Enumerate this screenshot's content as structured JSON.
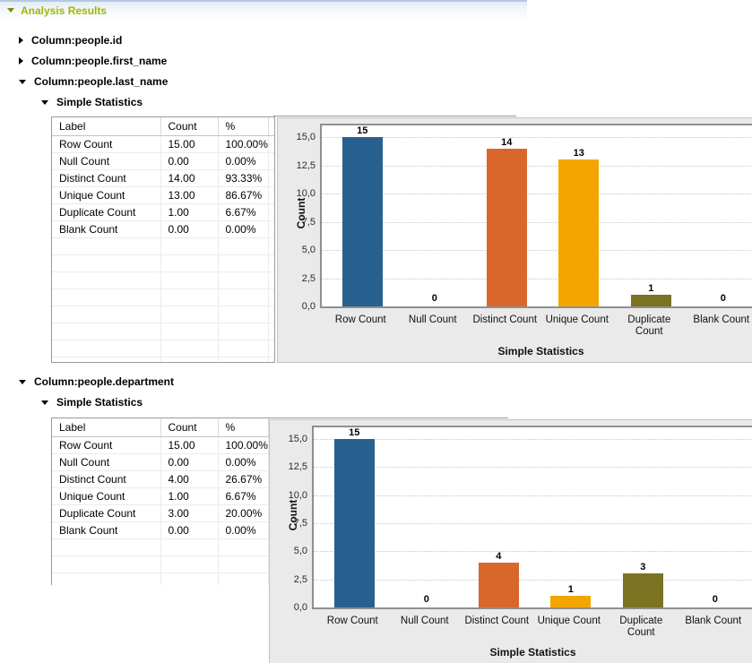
{
  "header": {
    "title": "Analysis Results"
  },
  "tree": {
    "items": [
      {
        "label": "Column:people.id",
        "expanded": false,
        "indent": 0
      },
      {
        "label": "Column:people.first_name",
        "expanded": false,
        "indent": 0
      },
      {
        "label": "Column:people.last_name",
        "expanded": true,
        "indent": 0
      },
      {
        "label": "Simple Statistics",
        "expanded": true,
        "indent": 1
      },
      {
        "label": "Column:people.department",
        "expanded": true,
        "indent": 0
      },
      {
        "label": "Simple Statistics",
        "expanded": true,
        "indent": 1
      }
    ]
  },
  "sections": [
    {
      "table": {
        "headers": [
          "Label",
          "Count",
          "%"
        ],
        "rows": [
          [
            "Row Count",
            "15.00",
            "100.00%"
          ],
          [
            "Null Count",
            "0.00",
            "0.00%"
          ],
          [
            "Distinct Count",
            "14.00",
            "93.33%"
          ],
          [
            "Unique Count",
            "13.00",
            "86.67%"
          ],
          [
            "Duplicate Count",
            "1.00",
            "6.67%"
          ],
          [
            "Blank Count",
            "0.00",
            "0.00%"
          ]
        ],
        "empty_row_count": 8
      }
    },
    {
      "table": {
        "headers": [
          "Label",
          "Count",
          "%"
        ],
        "rows": [
          [
            "Row Count",
            "15.00",
            "100.00%"
          ],
          [
            "Null Count",
            "0.00",
            "0.00%"
          ],
          [
            "Distinct Count",
            "4.00",
            "26.67%"
          ],
          [
            "Unique Count",
            "1.00",
            "6.67%"
          ],
          [
            "Duplicate Count",
            "3.00",
            "20.00%"
          ],
          [
            "Blank Count",
            "0.00",
            "0.00%"
          ]
        ],
        "empty_row_count": 3
      }
    }
  ],
  "chart_data": [
    {
      "type": "bar",
      "title": "",
      "categories": [
        "Row Count",
        "Null Count",
        "Distinct Count",
        "Unique Count",
        "Duplicate\nCount",
        "Blank Count"
      ],
      "values": [
        15,
        0,
        14,
        13,
        1,
        0
      ],
      "bar_value_labels": [
        "15",
        "0",
        "14",
        "13",
        "1",
        "0"
      ],
      "xlabel": "Simple Statistics",
      "ylabel": "Count",
      "ylim": [
        0,
        16
      ],
      "ytick_values": [
        15,
        12.5,
        10,
        7.5,
        5,
        2.5,
        0
      ],
      "ytick_labels": [
        "15,0",
        "12,5",
        "10,0",
        "7,5",
        "5,0",
        "2,5",
        "0,0"
      ],
      "grid": "horizontal-dotted",
      "legend": "none",
      "bar_colors": [
        "#28618f",
        "#28618f",
        "#d9662b",
        "#f4a600",
        "#7b7222",
        "#28618f"
      ]
    },
    {
      "type": "bar",
      "title": "",
      "categories": [
        "Row Count",
        "Null Count",
        "Distinct Count",
        "Unique Count",
        "Duplicate\nCount",
        "Blank Count"
      ],
      "values": [
        15,
        0,
        4,
        1,
        3,
        0
      ],
      "bar_value_labels": [
        "15",
        "0",
        "4",
        "1",
        "3",
        "0"
      ],
      "xlabel": "Simple Statistics",
      "ylabel": "Count",
      "ylim": [
        0,
        16
      ],
      "ytick_values": [
        15,
        12.5,
        10,
        7.5,
        5,
        2.5,
        0
      ],
      "ytick_labels": [
        "15,0",
        "12,5",
        "10,0",
        "7,5",
        "5,0",
        "2,5",
        "0,0"
      ],
      "grid": "horizontal-dotted",
      "legend": "none",
      "bar_colors": [
        "#28618f",
        "#28618f",
        "#d9662b",
        "#f4a600",
        "#7b7222",
        "#28618f"
      ]
    }
  ],
  "colors": {
    "header_text": "#9cba00",
    "bar_blue": "#28618f",
    "bar_orange": "#d9662b",
    "bar_amber": "#f4a600",
    "bar_olive": "#7b7222",
    "chart_panel_bg": "#eaeaea"
  }
}
